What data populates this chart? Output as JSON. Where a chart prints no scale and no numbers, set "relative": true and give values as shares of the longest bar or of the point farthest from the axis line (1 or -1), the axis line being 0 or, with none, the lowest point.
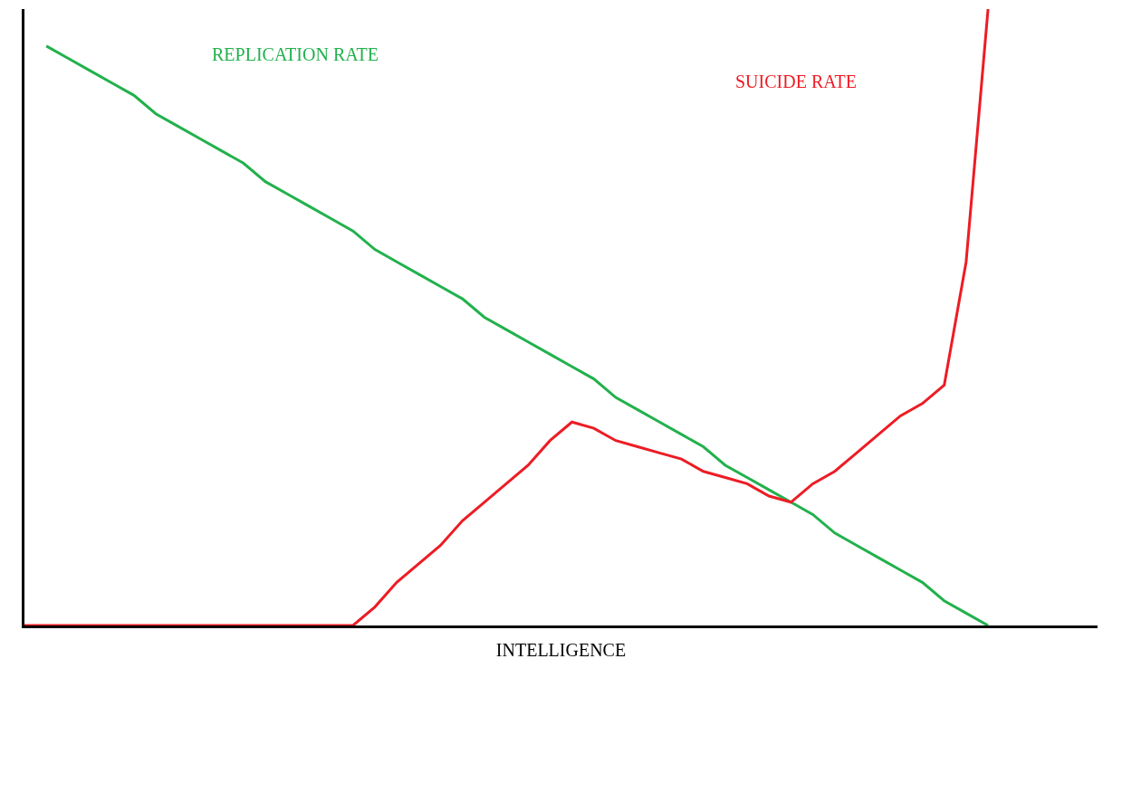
{
  "chart_data": {
    "type": "line",
    "relative": true,
    "xlabel": "INTELLIGENCE",
    "legend": false,
    "marker": "none",
    "line_style": "solid",
    "categories": [
      null,
      null,
      null,
      null,
      null,
      null,
      null,
      null,
      null,
      null,
      null,
      null,
      null,
      null,
      null,
      null,
      null,
      null,
      null,
      null,
      null,
      null,
      null,
      null,
      null,
      null,
      null,
      null,
      null,
      null,
      null,
      null,
      null,
      null,
      null,
      null,
      null,
      null,
      null,
      null,
      null,
      null,
      null,
      null,
      null,
      null,
      null,
      null,
      null,
      null
    ],
    "series": [
      {
        "name": "REPLICATION RATE",
        "color": "#22b14c",
        "values": [
          null,
          0.94,
          0.92,
          0.9,
          0.88,
          0.86,
          0.83,
          0.81,
          0.79,
          0.77,
          0.75,
          0.72,
          0.7,
          0.68,
          0.66,
          0.64,
          0.61,
          0.59,
          0.57,
          0.55,
          0.53,
          0.5,
          0.48,
          0.46,
          0.44,
          0.42,
          0.4,
          0.37,
          0.35,
          0.33,
          0.31,
          0.29,
          0.26,
          0.24,
          0.22,
          0.2,
          0.18,
          0.15,
          0.13,
          0.11,
          0.09,
          0.07,
          0.04,
          0.02,
          0,
          null,
          null,
          null,
          null,
          null
        ]
      },
      {
        "name": "SUICIDE RATE",
        "color": "#ed1c24",
        "values": [
          0,
          0,
          0,
          0,
          0,
          0,
          0,
          0,
          0,
          0,
          0,
          0,
          0,
          0,
          0,
          0,
          0.03,
          0.07,
          0.1,
          0.13,
          0.17,
          0.2,
          0.23,
          0.26,
          0.3,
          0.33,
          0.32,
          0.3,
          0.29,
          0.28,
          0.27,
          0.25,
          0.24,
          0.23,
          0.21,
          0.2,
          0.23,
          0.25,
          0.28,
          0.31,
          0.34,
          0.36,
          0.39,
          0.59,
          1,
          null,
          null,
          null,
          null,
          null
        ]
      }
    ]
  }
}
